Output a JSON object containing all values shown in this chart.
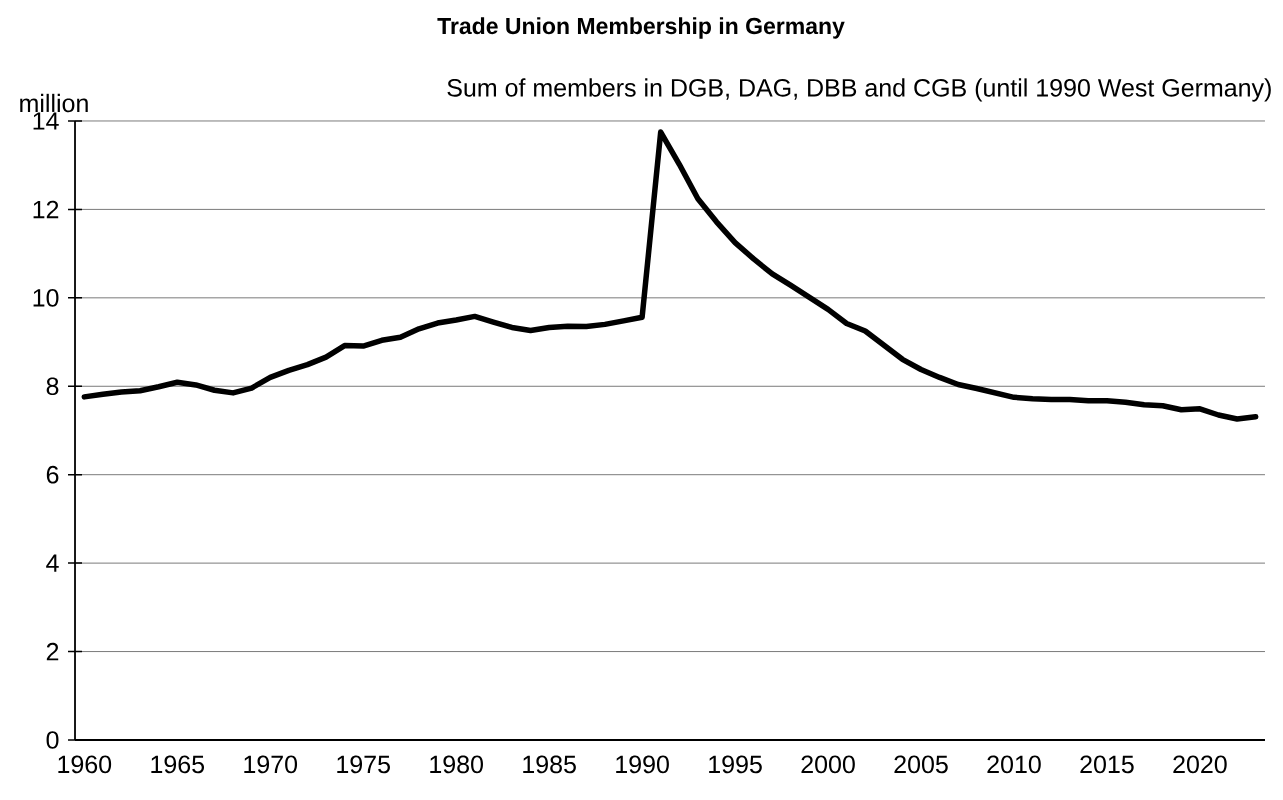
{
  "chart_data": {
    "type": "line",
    "title": "Trade Union Membership in Germany",
    "subtitle": "Sum of members in DGB, DAG, DBB and CGB (until 1990 West Germany)",
    "ylabel": "million",
    "categories": [
      "1960",
      null,
      null,
      null,
      null,
      "1965",
      null,
      null,
      null,
      null,
      "1970",
      null,
      null,
      null,
      null,
      "1975",
      null,
      null,
      null,
      null,
      "1980",
      null,
      null,
      null,
      null,
      "1985",
      null,
      null,
      null,
      null,
      "1990",
      null,
      null,
      null,
      null,
      "1995",
      null,
      null,
      null,
      null,
      "2000",
      null,
      null,
      null,
      null,
      "2005",
      null,
      null,
      null,
      null,
      "2010",
      null,
      null,
      null,
      null,
      "2015",
      null,
      null,
      null,
      null,
      "2020",
      null,
      null,
      null
    ],
    "values": [
      7.76,
      7.82,
      7.87,
      7.9,
      7.99,
      8.09,
      8.03,
      7.91,
      7.85,
      7.96,
      8.2,
      8.36,
      8.49,
      8.66,
      8.92,
      8.91,
      9.04,
      9.11,
      9.3,
      9.43,
      9.5,
      9.58,
      9.45,
      9.33,
      9.26,
      9.33,
      9.36,
      9.35,
      9.4,
      9.48,
      9.56,
      13.75,
      13.02,
      12.24,
      11.72,
      11.25,
      10.88,
      10.54,
      10.28,
      10.01,
      9.74,
      9.42,
      9.25,
      8.93,
      8.61,
      8.38,
      8.2,
      8.04,
      7.95,
      7.85,
      7.75,
      7.72,
      7.7,
      7.7,
      7.67,
      7.67,
      7.64,
      7.58,
      7.56,
      7.47,
      7.49,
      7.35,
      7.26,
      7.31
    ],
    "color": "#000000",
    "ylim": [
      0,
      14
    ],
    "yticks": [
      0,
      2,
      4,
      6,
      8,
      10,
      12,
      14
    ],
    "grid": "y",
    "marker": "none",
    "line_style": "solid"
  }
}
